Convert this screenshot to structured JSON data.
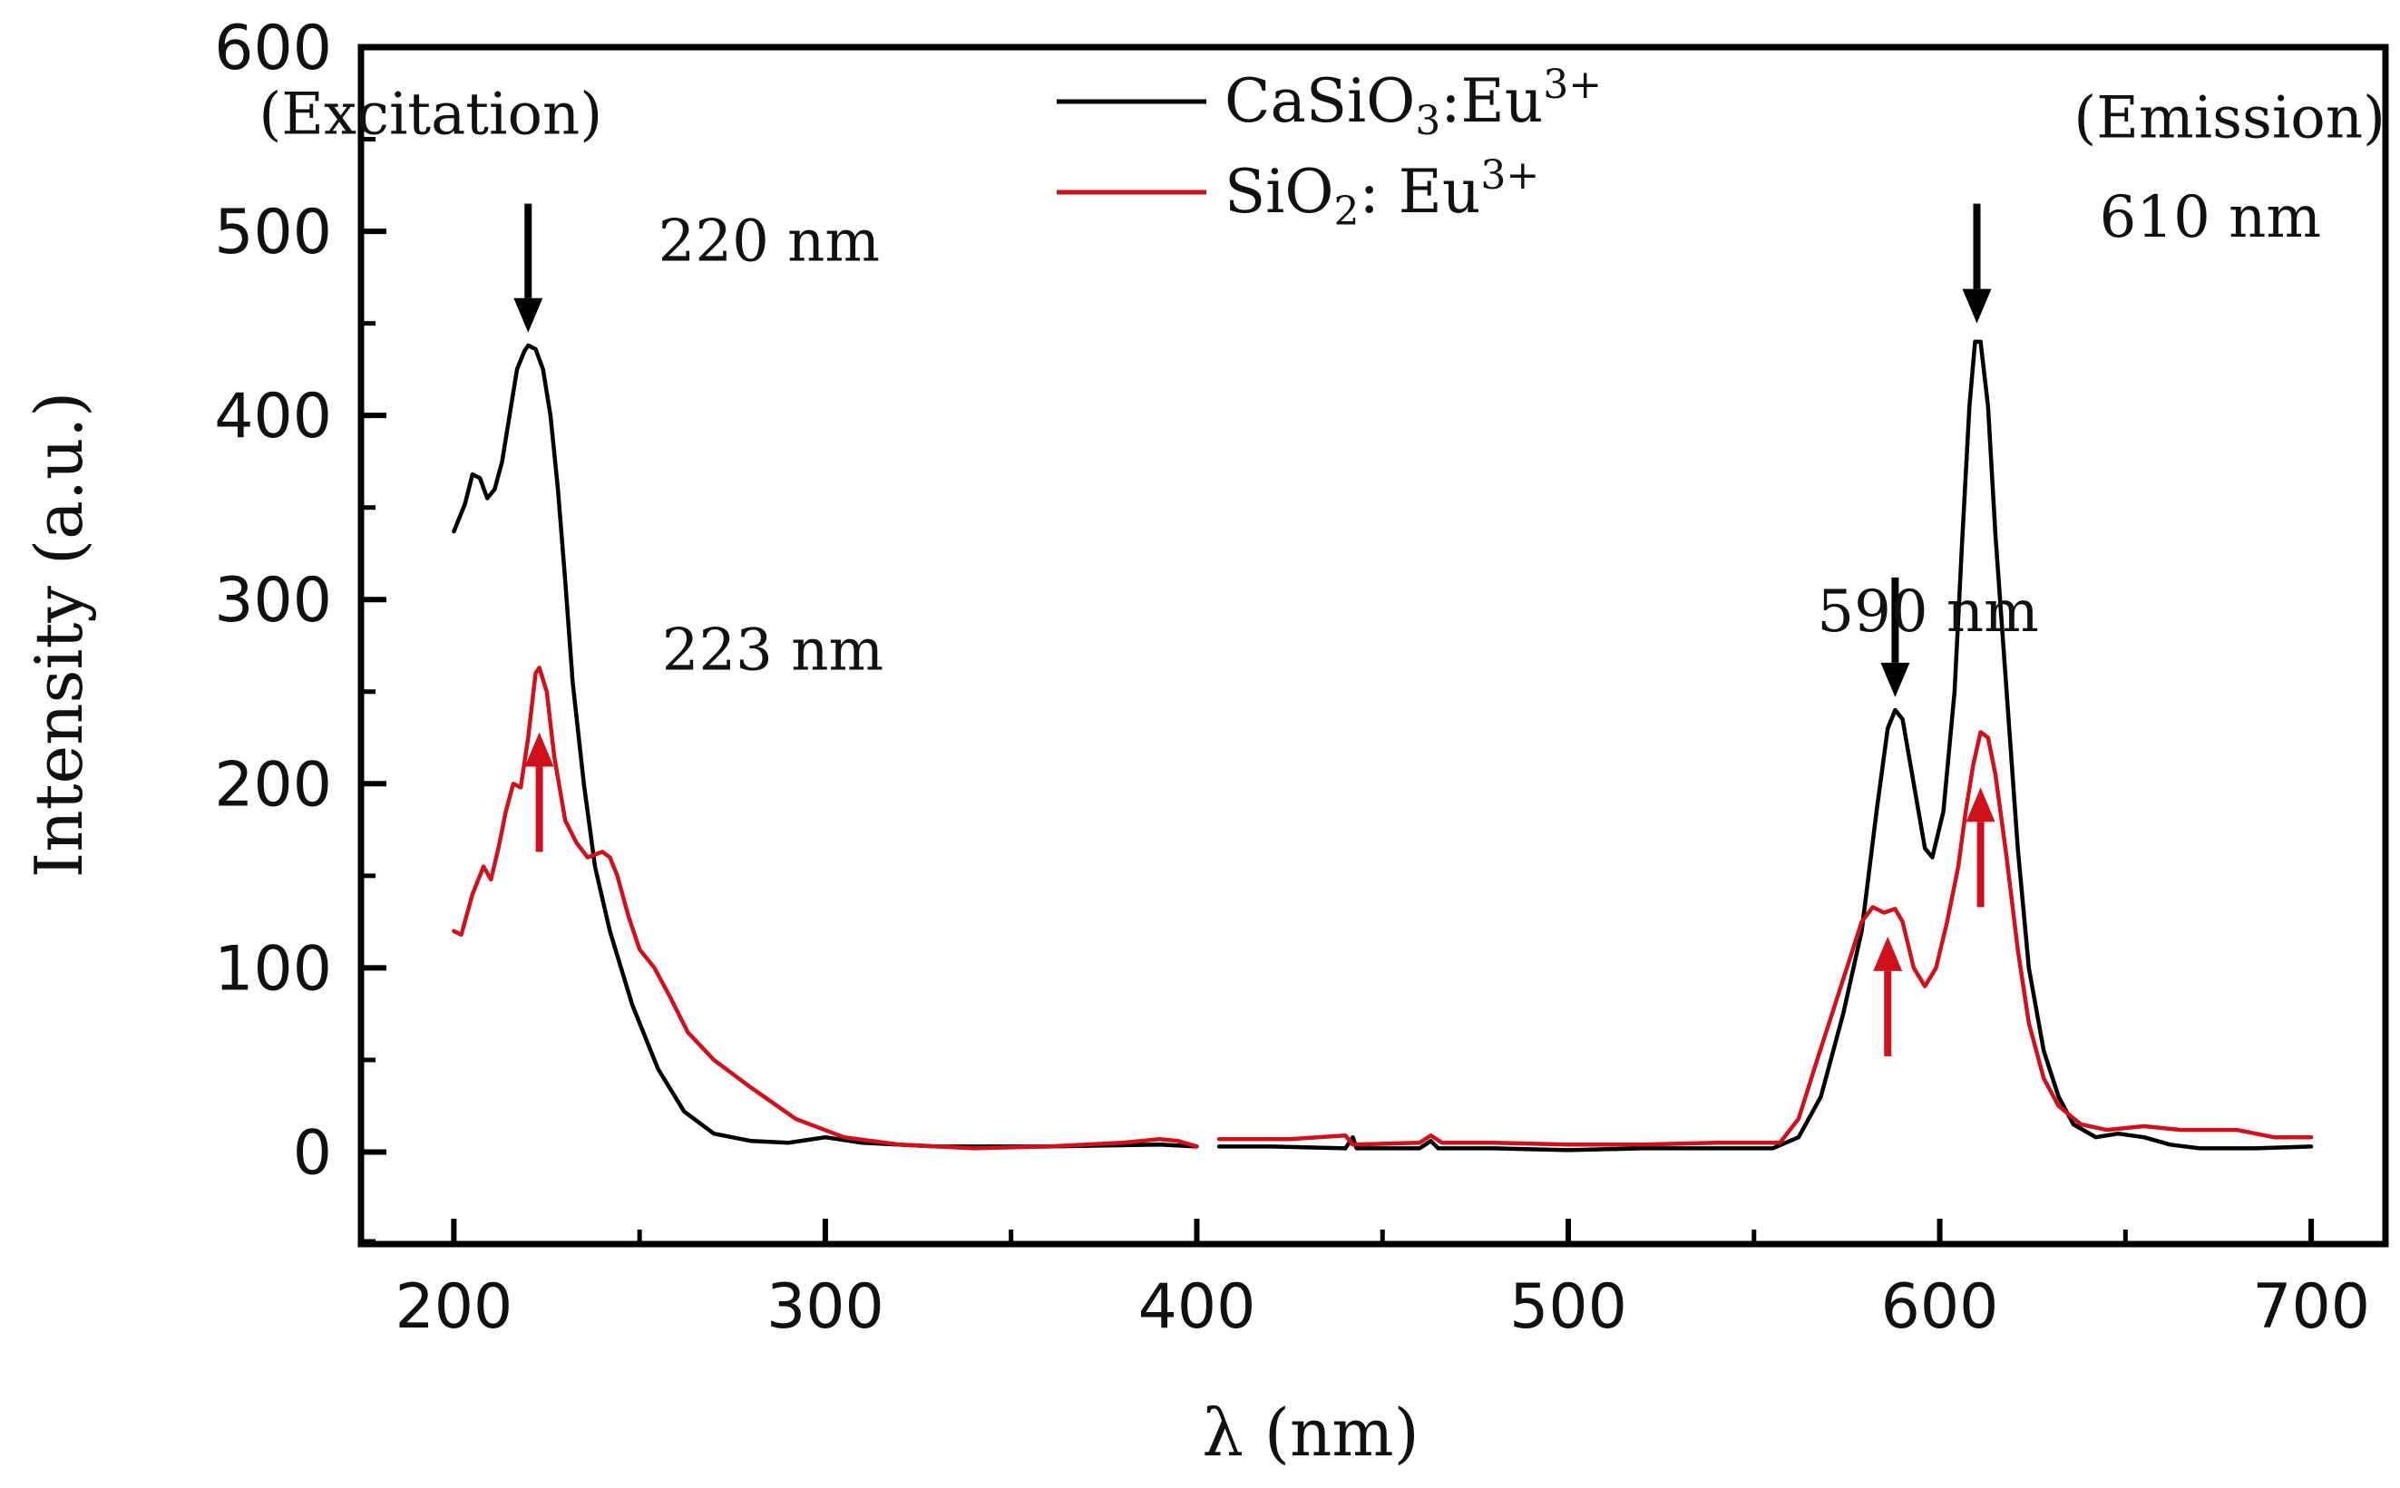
{
  "chart_data": {
    "type": "line",
    "xlabel": "λ (nm)",
    "ylabel": "Intensity (a.u.)",
    "xlim": [
      175,
      720
    ],
    "ylim": [
      -50,
      600
    ],
    "xticks": [
      200,
      300,
      400,
      500,
      600,
      700
    ],
    "yticks": [
      0,
      100,
      200,
      300,
      400,
      500,
      600
    ],
    "gap": [
      400,
      406
    ],
    "legend": {
      "position": "top-center",
      "entries": [
        {
          "base": "CaSiO",
          "sub": "3",
          "mid": ":Eu",
          "sup": "3+",
          "color": "#000000"
        },
        {
          "base": "SiO",
          "sub": "2",
          "mid": ": Eu",
          "sup": "3+",
          "color": "#d0101a"
        }
      ]
    },
    "region_labels": [
      {
        "text": "(Excitation)",
        "x": 240,
        "y": 553
      },
      {
        "text": "(Emission)",
        "x": 720,
        "y": 551
      }
    ],
    "annotations": [
      {
        "text": "220 nm",
        "x": 255,
        "y": 484
      },
      {
        "text": "223 nm",
        "x": 256,
        "y": 262
      },
      {
        "text": "590 nm",
        "x": 567,
        "y": 283
      },
      {
        "text": "610 nm",
        "x": 643,
        "y": 497
      }
    ],
    "arrows": [
      {
        "series": "CaSiO3:Eu3+",
        "x": 220,
        "y_from": 515,
        "y_to": 445,
        "color": "#000000"
      },
      {
        "series": "CaSiO3:Eu3+",
        "x": 610,
        "y_from": 515,
        "y_to": 450,
        "color": "#000000"
      },
      {
        "series": "CaSiO3:Eu3+",
        "x": 588,
        "y_from": 312,
        "y_to": 247,
        "color": "#000000"
      },
      {
        "series": "SiO2:Eu3+",
        "x": 223,
        "y_from": 163,
        "y_to": 228,
        "color": "#d0101a"
      },
      {
        "series": "SiO2:Eu3+",
        "x": 611,
        "y_from": 133,
        "y_to": 198,
        "color": "#d0101a"
      },
      {
        "series": "SiO2:Eu3+",
        "x": 586,
        "y_from": 52,
        "y_to": 117,
        "color": "#d0101a"
      }
    ],
    "series": [
      {
        "name": "CaSiO3:Eu3+",
        "color": "#000000",
        "segments": [
          [
            [
              200,
              337
            ],
            [
              203,
              352
            ],
            [
              205,
              368
            ],
            [
              207,
              366
            ],
            [
              209,
              355
            ],
            [
              211,
              360
            ],
            [
              213,
              375
            ],
            [
              215,
              400
            ],
            [
              217,
              425
            ],
            [
              219,
              435
            ],
            [
              220,
              438
            ],
            [
              222,
              436
            ],
            [
              224,
              425
            ],
            [
              226,
              400
            ],
            [
              228,
              360
            ],
            [
              230,
              310
            ],
            [
              232,
              255
            ],
            [
              235,
              200
            ],
            [
              238,
              155
            ],
            [
              242,
              120
            ],
            [
              248,
              80
            ],
            [
              255,
              45
            ],
            [
              262,
              22
            ],
            [
              270,
              10
            ],
            [
              280,
              6
            ],
            [
              290,
              5
            ],
            [
              300,
              8
            ],
            [
              310,
              5
            ],
            [
              330,
              3
            ],
            [
              360,
              3
            ],
            [
              390,
              4
            ],
            [
              400,
              3
            ]
          ],
          [
            [
              406,
              3
            ],
            [
              420,
              3
            ],
            [
              440,
              2
            ],
            [
              442,
              8
            ],
            [
              443,
              2
            ],
            [
              460,
              2
            ],
            [
              463,
              6
            ],
            [
              465,
              2
            ],
            [
              480,
              2
            ],
            [
              500,
              1
            ],
            [
              520,
              2
            ],
            [
              540,
              2
            ],
            [
              555,
              2
            ],
            [
              562,
              8
            ],
            [
              568,
              30
            ],
            [
              574,
              75
            ],
            [
              579,
              120
            ],
            [
              583,
              185
            ],
            [
              586,
              230
            ],
            [
              588,
              240
            ],
            [
              590,
              235
            ],
            [
              593,
              200
            ],
            [
              596,
              165
            ],
            [
              598,
              160
            ],
            [
              601,
              185
            ],
            [
              604,
              250
            ],
            [
              606,
              330
            ],
            [
              608,
              405
            ],
            [
              609.5,
              440
            ],
            [
              611,
              440
            ],
            [
              613,
              405
            ],
            [
              615,
              335
            ],
            [
              618,
              250
            ],
            [
              621,
              165
            ],
            [
              624,
              100
            ],
            [
              628,
              55
            ],
            [
              632,
              30
            ],
            [
              636,
              15
            ],
            [
              642,
              8
            ],
            [
              648,
              10
            ],
            [
              655,
              8
            ],
            [
              662,
              4
            ],
            [
              670,
              2
            ],
            [
              685,
              2
            ],
            [
              700,
              3
            ]
          ]
        ]
      },
      {
        "name": "SiO2:Eu3+",
        "color": "#d0101a",
        "segments": [
          [
            [
              200,
              120
            ],
            [
              202,
              118
            ],
            [
              205,
              140
            ],
            [
              208,
              155
            ],
            [
              210,
              148
            ],
            [
              212,
              165
            ],
            [
              214,
              185
            ],
            [
              216,
              200
            ],
            [
              218,
              198
            ],
            [
              220,
              225
            ],
            [
              222,
              260
            ],
            [
              223,
              263
            ],
            [
              225,
              250
            ],
            [
              227,
              215
            ],
            [
              230,
              180
            ],
            [
              233,
              168
            ],
            [
              236,
              160
            ],
            [
              240,
              163
            ],
            [
              242,
              160
            ],
            [
              244,
              150
            ],
            [
              247,
              128
            ],
            [
              250,
              110
            ],
            [
              254,
              100
            ],
            [
              258,
              85
            ],
            [
              263,
              65
            ],
            [
              270,
              50
            ],
            [
              280,
              35
            ],
            [
              292,
              18
            ],
            [
              305,
              8
            ],
            [
              320,
              4
            ],
            [
              340,
              2
            ],
            [
              360,
              3
            ],
            [
              380,
              5
            ],
            [
              390,
              7
            ],
            [
              395,
              6
            ],
            [
              400,
              3
            ]
          ],
          [
            [
              406,
              7
            ],
            [
              425,
              7
            ],
            [
              440,
              9
            ],
            [
              442,
              4
            ],
            [
              460,
              5
            ],
            [
              463,
              9
            ],
            [
              466,
              5
            ],
            [
              480,
              5
            ],
            [
              500,
              4
            ],
            [
              520,
              4
            ],
            [
              540,
              5
            ],
            [
              557,
              5
            ],
            [
              562,
              18
            ],
            [
              567,
              50
            ],
            [
              571,
              75
            ],
            [
              575,
              100
            ],
            [
              579,
              125
            ],
            [
              582,
              133
            ],
            [
              585,
              130
            ],
            [
              588,
              132
            ],
            [
              590,
              125
            ],
            [
              593,
              100
            ],
            [
              596,
              90
            ],
            [
              599,
              100
            ],
            [
              602,
              125
            ],
            [
              605,
              155
            ],
            [
              607,
              185
            ],
            [
              609,
              210
            ],
            [
              611,
              228
            ],
            [
              613,
              225
            ],
            [
              615,
              205
            ],
            [
              618,
              160
            ],
            [
              621,
              110
            ],
            [
              624,
              70
            ],
            [
              628,
              40
            ],
            [
              632,
              25
            ],
            [
              638,
              15
            ],
            [
              645,
              12
            ],
            [
              655,
              14
            ],
            [
              665,
              12
            ],
            [
              680,
              12
            ],
            [
              690,
              8
            ],
            [
              700,
              8
            ]
          ]
        ]
      }
    ]
  }
}
